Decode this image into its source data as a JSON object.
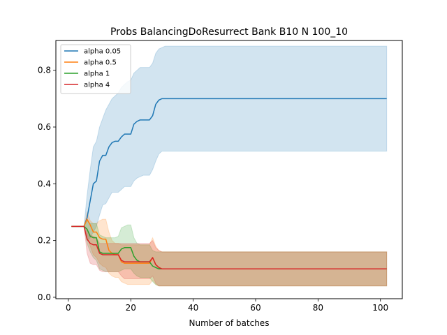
{
  "chart_data": {
    "type": "line",
    "title": "Probs BalancingDoResurrect Bank B10 N 100_10",
    "xlabel": "Number of batches",
    "ylabel": "",
    "xlim": [
      -4,
      107
    ],
    "ylim": [
      -0.005,
      0.905
    ],
    "xticks": [
      0,
      20,
      40,
      60,
      80,
      100
    ],
    "yticks": [
      0.0,
      0.2,
      0.4,
      0.6,
      0.8
    ],
    "xtick_labels": [
      "0",
      "20",
      "40",
      "60",
      "80",
      "100"
    ],
    "ytick_labels": [
      "0.0",
      "0.2",
      "0.4",
      "0.6",
      "0.8"
    ],
    "grid": false,
    "legend_position": "top-left",
    "series": [
      {
        "name": "alpha 0.05",
        "color": "#1f77b4",
        "x": [
          1,
          5,
          6,
          7,
          8,
          9,
          10,
          11,
          12,
          13,
          14,
          15,
          16,
          17,
          18,
          19,
          20,
          21,
          22,
          23,
          24,
          25,
          26,
          27,
          28,
          29,
          30,
          31,
          40,
          60,
          80,
          102
        ],
        "y": [
          0.25,
          0.25,
          0.28,
          0.34,
          0.4,
          0.41,
          0.48,
          0.5,
          0.5,
          0.53,
          0.545,
          0.55,
          0.55,
          0.565,
          0.575,
          0.575,
          0.575,
          0.61,
          0.62,
          0.625,
          0.625,
          0.625,
          0.625,
          0.64,
          0.68,
          0.695,
          0.7,
          0.7,
          0.7,
          0.7,
          0.7,
          0.7
        ],
        "lower": [
          0.25,
          0.25,
          0.2,
          0.21,
          0.23,
          0.25,
          0.29,
          0.325,
          0.33,
          0.35,
          0.37,
          0.37,
          0.37,
          0.38,
          0.39,
          0.39,
          0.39,
          0.41,
          0.42,
          0.425,
          0.43,
          0.43,
          0.43,
          0.45,
          0.48,
          0.505,
          0.515,
          0.515,
          0.515,
          0.515,
          0.515,
          0.515
        ],
        "upper": [
          0.25,
          0.25,
          0.36,
          0.45,
          0.53,
          0.55,
          0.6,
          0.63,
          0.66,
          0.68,
          0.7,
          0.71,
          0.72,
          0.74,
          0.75,
          0.76,
          0.765,
          0.79,
          0.8,
          0.81,
          0.81,
          0.81,
          0.81,
          0.825,
          0.86,
          0.875,
          0.88,
          0.885,
          0.885,
          0.885,
          0.885,
          0.885
        ]
      },
      {
        "name": "alpha 0.5",
        "color": "#ff7f0e",
        "x": [
          1,
          5,
          6,
          7,
          8,
          9,
          10,
          11,
          12,
          13,
          14,
          15,
          16,
          17,
          18,
          19,
          20,
          21,
          22,
          23,
          24,
          25,
          26,
          27,
          28,
          29,
          30,
          31,
          40,
          60,
          80,
          102
        ],
        "y": [
          0.25,
          0.25,
          0.275,
          0.255,
          0.23,
          0.23,
          0.21,
          0.205,
          0.205,
          0.165,
          0.155,
          0.15,
          0.15,
          0.125,
          0.12,
          0.12,
          0.12,
          0.12,
          0.12,
          0.12,
          0.12,
          0.12,
          0.12,
          0.14,
          0.115,
          0.105,
          0.1,
          0.1,
          0.1,
          0.1,
          0.1,
          0.1
        ],
        "lower": [
          0.25,
          0.25,
          0.21,
          0.18,
          0.15,
          0.14,
          0.12,
          0.11,
          0.105,
          0.085,
          0.075,
          0.07,
          0.07,
          0.055,
          0.05,
          0.045,
          0.045,
          0.045,
          0.045,
          0.045,
          0.045,
          0.045,
          0.045,
          0.06,
          0.045,
          0.04,
          0.04,
          0.04,
          0.04,
          0.04,
          0.04,
          0.04
        ],
        "upper": [
          0.25,
          0.25,
          0.3,
          0.27,
          0.26,
          0.26,
          0.27,
          0.275,
          0.275,
          0.23,
          0.2,
          0.19,
          0.19,
          0.185,
          0.185,
          0.185,
          0.185,
          0.185,
          0.185,
          0.185,
          0.185,
          0.185,
          0.185,
          0.21,
          0.18,
          0.165,
          0.16,
          0.16,
          0.16,
          0.16,
          0.16,
          0.16
        ]
      },
      {
        "name": "alpha 1",
        "color": "#2ca02c",
        "x": [
          1,
          5,
          6,
          7,
          8,
          9,
          10,
          11,
          12,
          13,
          14,
          15,
          16,
          17,
          18,
          19,
          20,
          21,
          22,
          23,
          24,
          25,
          26,
          27,
          28,
          29,
          30,
          31,
          40,
          60,
          80,
          102
        ],
        "y": [
          0.25,
          0.25,
          0.24,
          0.215,
          0.21,
          0.21,
          0.16,
          0.155,
          0.155,
          0.155,
          0.155,
          0.155,
          0.155,
          0.17,
          0.175,
          0.175,
          0.175,
          0.145,
          0.13,
          0.125,
          0.125,
          0.125,
          0.125,
          0.11,
          0.105,
          0.1,
          0.1,
          0.1,
          0.1,
          0.1,
          0.1,
          0.1
        ],
        "lower": [
          0.25,
          0.25,
          0.19,
          0.16,
          0.14,
          0.13,
          0.1,
          0.095,
          0.09,
          0.09,
          0.09,
          0.09,
          0.09,
          0.095,
          0.1,
          0.1,
          0.1,
          0.085,
          0.075,
          0.07,
          0.07,
          0.07,
          0.07,
          0.055,
          0.045,
          0.04,
          0.04,
          0.04,
          0.04,
          0.04,
          0.04,
          0.04
        ],
        "upper": [
          0.25,
          0.25,
          0.27,
          0.26,
          0.26,
          0.26,
          0.22,
          0.215,
          0.21,
          0.21,
          0.21,
          0.21,
          0.215,
          0.245,
          0.25,
          0.255,
          0.255,
          0.21,
          0.19,
          0.185,
          0.185,
          0.185,
          0.185,
          0.165,
          0.16,
          0.16,
          0.16,
          0.16,
          0.16,
          0.16,
          0.16,
          0.16
        ]
      },
      {
        "name": "alpha 4",
        "color": "#d62728",
        "x": [
          1,
          5,
          6,
          7,
          8,
          9,
          10,
          11,
          12,
          13,
          14,
          15,
          16,
          17,
          18,
          19,
          20,
          21,
          22,
          23,
          24,
          25,
          26,
          27,
          28,
          29,
          30,
          31,
          40,
          60,
          80,
          102
        ],
        "y": [
          0.25,
          0.25,
          0.205,
          0.19,
          0.185,
          0.185,
          0.155,
          0.15,
          0.15,
          0.15,
          0.15,
          0.15,
          0.15,
          0.13,
          0.125,
          0.125,
          0.125,
          0.125,
          0.125,
          0.125,
          0.125,
          0.125,
          0.125,
          0.14,
          0.115,
          0.105,
          0.1,
          0.1,
          0.1,
          0.1,
          0.1,
          0.1
        ],
        "lower": [
          0.25,
          0.25,
          0.155,
          0.12,
          0.115,
          0.115,
          0.095,
          0.09,
          0.09,
          0.09,
          0.09,
          0.09,
          0.09,
          0.075,
          0.065,
          0.065,
          0.065,
          0.065,
          0.065,
          0.065,
          0.065,
          0.065,
          0.065,
          0.075,
          0.05,
          0.04,
          0.04,
          0.04,
          0.04,
          0.04,
          0.04,
          0.04
        ],
        "upper": [
          0.25,
          0.25,
          0.24,
          0.22,
          0.215,
          0.21,
          0.19,
          0.19,
          0.19,
          0.19,
          0.19,
          0.19,
          0.19,
          0.19,
          0.19,
          0.19,
          0.19,
          0.19,
          0.19,
          0.19,
          0.19,
          0.19,
          0.19,
          0.2,
          0.175,
          0.165,
          0.16,
          0.16,
          0.16,
          0.16,
          0.16,
          0.16
        ]
      }
    ]
  }
}
